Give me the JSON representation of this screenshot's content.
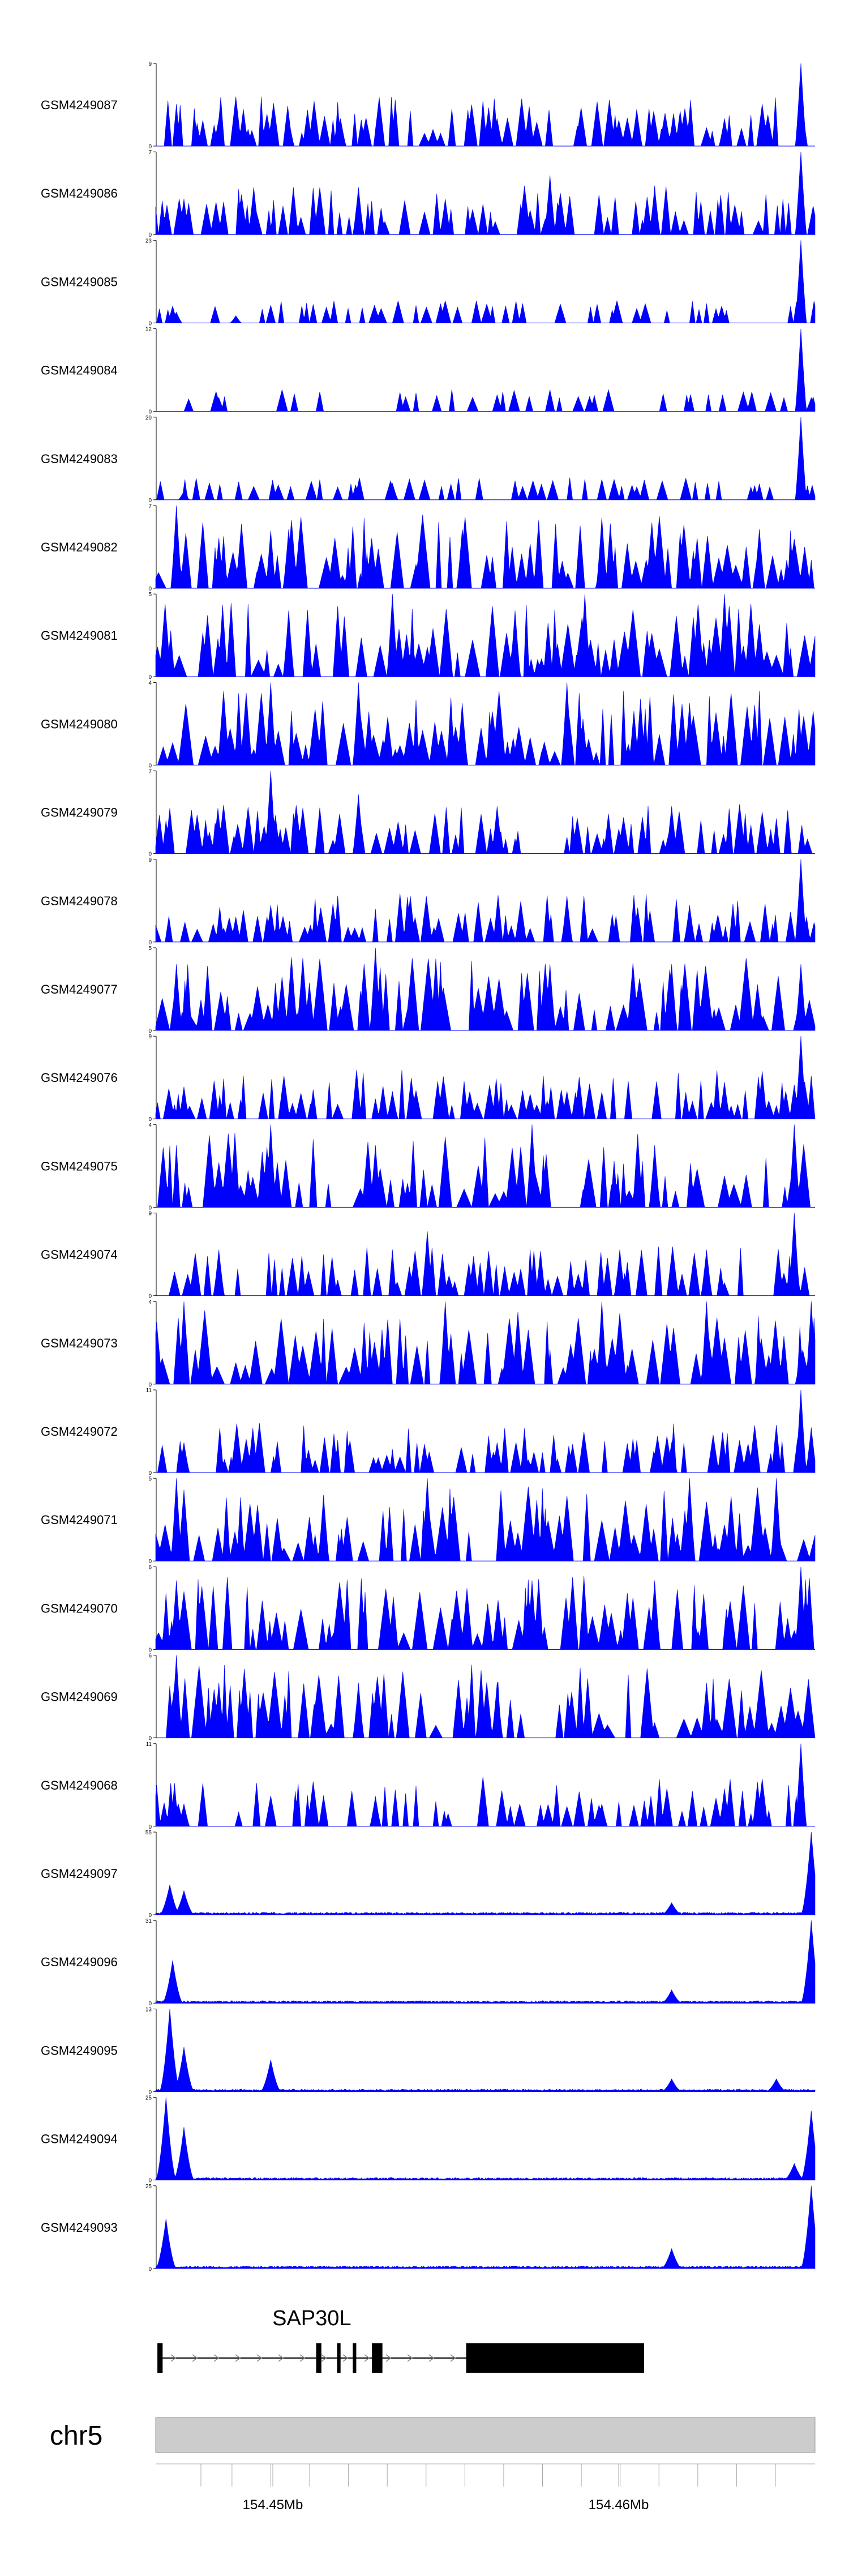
{
  "chart_data": {
    "type": "area",
    "color": "#0000ff",
    "x_unit": "bp",
    "xlim": [
      154442200,
      154461100
    ],
    "tracks": [
      {
        "name": "GSM4249087",
        "ymax": 9,
        "peaks": [
          [
            154460700,
            9
          ],
          [
            154452000,
            3
          ],
          [
            154446000,
            3
          ],
          [
            154444000,
            3
          ],
          [
            154456000,
            4
          ],
          [
            154447500,
            3
          ],
          [
            154458500,
            3
          ]
        ],
        "level": 2
      },
      {
        "name": "GSM4249086",
        "ymax": 7,
        "peaks": [
          [
            154460700,
            7
          ],
          [
            154453500,
            5
          ],
          [
            154448000,
            4
          ],
          [
            154456500,
            4
          ],
          [
            154445000,
            4
          ],
          [
            154450500,
            3
          ],
          [
            154443000,
            3
          ]
        ],
        "level": 2
      },
      {
        "name": "GSM4249085",
        "ymax": 23,
        "peaks": [
          [
            154460700,
            23
          ],
          [
            154442800,
            3
          ],
          [
            154444500,
            2
          ]
        ],
        "level": 1
      },
      {
        "name": "GSM4249084",
        "ymax": 12,
        "peaks": [
          [
            154460700,
            12
          ],
          [
            154461000,
            2
          ],
          [
            154444000,
            2
          ]
        ],
        "level": 1
      },
      {
        "name": "GSM4249083",
        "ymax": 20,
        "peaks": [
          [
            154460700,
            20
          ],
          [
            154449000,
            4
          ],
          [
            154443000,
            2
          ]
        ],
        "level": 1
      },
      {
        "name": "GSM4249082",
        "ymax": 7,
        "peaks": [
          [
            154442800,
            7
          ],
          [
            154455000,
            6
          ],
          [
            154459500,
            5
          ],
          [
            154446000,
            5
          ],
          [
            154451000,
            5
          ]
        ],
        "level": 3
      },
      {
        "name": "GSM4249081",
        "ymax": 5,
        "peaks": [
          [
            154454500,
            5
          ],
          [
            154449000,
            5
          ],
          [
            154458500,
            5
          ],
          [
            154446000,
            4
          ],
          [
            154452500,
            4
          ]
        ],
        "level": 3
      },
      {
        "name": "GSM4249080",
        "ymax": 4,
        "peaks": [
          [
            154454000,
            4
          ],
          [
            154448000,
            4
          ],
          [
            154445500,
            4
          ],
          [
            154451000,
            3
          ],
          [
            154457500,
            3
          ]
        ],
        "level": 3
      },
      {
        "name": "GSM4249079",
        "ymax": 7,
        "peaks": [
          [
            154445500,
            7
          ],
          [
            154448000,
            5
          ],
          [
            154452000,
            4
          ],
          [
            154457000,
            4
          ]
        ],
        "level": 2
      },
      {
        "name": "GSM4249078",
        "ymax": 9,
        "peaks": [
          [
            154460700,
            9
          ],
          [
            154449500,
            5
          ],
          [
            154454000,
            5
          ],
          [
            154445500,
            4
          ],
          [
            154457500,
            4
          ]
        ],
        "level": 2
      },
      {
        "name": "GSM4249077",
        "ymax": 5,
        "peaks": [
          [
            154448500,
            5
          ],
          [
            154442800,
            4
          ],
          [
            154453500,
            4
          ],
          [
            154457000,
            4
          ],
          [
            154460700,
            4
          ]
        ],
        "level": 3
      },
      {
        "name": "GSM4249076",
        "ymax": 9,
        "peaks": [
          [
            154460700,
            9
          ],
          [
            154458500,
            4
          ],
          [
            154443000,
            3
          ],
          [
            154449000,
            3
          ],
          [
            154454000,
            3
          ]
        ],
        "level": 2
      },
      {
        "name": "GSM4249075",
        "ymax": 4,
        "peaks": [
          [
            154445500,
            4
          ],
          [
            154453000,
            4
          ],
          [
            154460500,
            4
          ],
          [
            154448500,
            3
          ],
          [
            154456500,
            3
          ]
        ],
        "level": 3
      },
      {
        "name": "GSM4249074",
        "ymax": 9,
        "peaks": [
          [
            154460500,
            9
          ],
          [
            154450000,
            7
          ],
          [
            154444000,
            5
          ],
          [
            154455500,
            5
          ],
          [
            154458000,
            5
          ]
        ],
        "level": 2
      },
      {
        "name": "GSM4249073",
        "ymax": 4,
        "peaks": [
          [
            154443000,
            4
          ],
          [
            154450500,
            4
          ],
          [
            154455000,
            4
          ],
          [
            154458000,
            4
          ],
          [
            154461000,
            4
          ]
        ],
        "level": 3
      },
      {
        "name": "GSM4249072",
        "ymax": 11,
        "peaks": [
          [
            154460700,
            11
          ],
          [
            154461000,
            6
          ],
          [
            154443000,
            4
          ],
          [
            154452000,
            4
          ],
          [
            154457000,
            4
          ]
        ],
        "level": 2
      },
      {
        "name": "GSM4249071",
        "ymax": 5,
        "peaks": [
          [
            154442800,
            5
          ],
          [
            154450000,
            5
          ],
          [
            154457500,
            5
          ],
          [
            154460000,
            5
          ],
          [
            154447000,
            4
          ]
        ],
        "level": 3
      },
      {
        "name": "GSM4249070",
        "ymax": 6,
        "peaks": [
          [
            154460700,
            6
          ],
          [
            154442800,
            5
          ],
          [
            154453000,
            5
          ],
          [
            154456500,
            5
          ],
          [
            154447500,
            4
          ]
        ],
        "level": 3
      },
      {
        "name": "GSM4249069",
        "ymax": 6,
        "peaks": [
          [
            154442800,
            6
          ],
          [
            154444000,
            4
          ],
          [
            154448000,
            4
          ],
          [
            154452000,
            4
          ],
          [
            154458000,
            4
          ]
        ],
        "level": 3
      },
      {
        "name": "GSM4249068",
        "ymax": 11,
        "peaks": [
          [
            154460700,
            11
          ],
          [
            154458500,
            5
          ],
          [
            154448500,
            4
          ],
          [
            154443000,
            3
          ],
          [
            154455000,
            3
          ]
        ],
        "level": 2
      },
      {
        "name": "GSM4249097",
        "ymax": 55,
        "peaks": [
          [
            154461000,
            55
          ],
          [
            154442600,
            20
          ],
          [
            154443000,
            16
          ],
          [
            154457000,
            8
          ]
        ],
        "level": 0
      },
      {
        "name": "GSM4249096",
        "ymax": 31,
        "peaks": [
          [
            154461000,
            31
          ],
          [
            154442700,
            16
          ],
          [
            154457000,
            5
          ]
        ],
        "level": 0
      },
      {
        "name": "GSM4249095",
        "ymax": 13,
        "peaks": [
          [
            154442600,
            13
          ],
          [
            154443000,
            7
          ],
          [
            154445500,
            5
          ],
          [
            154457000,
            2
          ],
          [
            154460000,
            2
          ]
        ],
        "level": 0
      },
      {
        "name": "GSM4249094",
        "ymax": 25,
        "peaks": [
          [
            154442500,
            25
          ],
          [
            154443000,
            16
          ],
          [
            154461000,
            21
          ],
          [
            154460500,
            5
          ]
        ],
        "level": 0
      },
      {
        "name": "GSM4249093",
        "ymax": 25,
        "peaks": [
          [
            154442500,
            15
          ],
          [
            154461000,
            25
          ],
          [
            154457000,
            6
          ]
        ],
        "level": 0
      }
    ],
    "gene": {
      "name": "SAP30L",
      "exons": [
        [
          154442250,
          154442400
        ],
        [
          154446800,
          154446950
        ],
        [
          154447400,
          154447500
        ],
        [
          154447850,
          154447950
        ],
        [
          154448400,
          154448700
        ],
        [
          154451100,
          154456200
        ]
      ],
      "strand": "+",
      "start": 154442250,
      "end": 154456200
    },
    "chromosome": "chr5",
    "axis_ticks": [
      154445200,
      154446000,
      154447000,
      154448000,
      154449000,
      154450000,
      154451000,
      154452000,
      154453000,
      154454000,
      154455000,
      154456000,
      154457000,
      154458000,
      154459000,
      154460000
    ],
    "axis_tick_labels": [
      {
        "pos": 154445600,
        "label": "154.45Mb"
      },
      {
        "pos": 154455600,
        "label": "154.46Mb"
      }
    ]
  }
}
